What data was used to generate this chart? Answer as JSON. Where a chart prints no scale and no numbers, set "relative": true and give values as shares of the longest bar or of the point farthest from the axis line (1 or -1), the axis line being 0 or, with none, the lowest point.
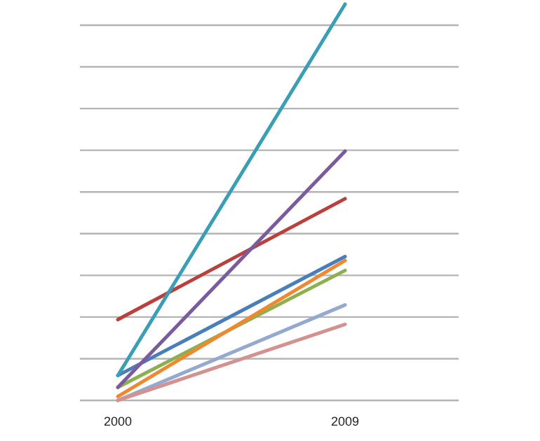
{
  "chart_data": {
    "type": "line",
    "relative": true,
    "grid": "y",
    "categories": [
      "2000",
      "2009"
    ],
    "series": [
      {
        "color": "#4a7ebb",
        "values": [
          0.063,
          0.363
        ]
      },
      {
        "color": "#b9403c",
        "values": [
          0.204,
          0.509
        ]
      },
      {
        "color": "#8db04f",
        "values": [
          0.033,
          0.328
        ]
      },
      {
        "color": "#7a5c9e",
        "values": [
          0.033,
          0.629
        ]
      },
      {
        "color": "#3a9fb5",
        "values": [
          0.063,
          1
        ]
      },
      {
        "color": "#f0882f",
        "values": [
          0.01,
          0.353
        ]
      },
      {
        "color": "#93a9cf",
        "values": [
          0,
          0.241
        ]
      },
      {
        "color": "#d4918f",
        "values": [
          0,
          0.192
        ]
      }
    ]
  }
}
